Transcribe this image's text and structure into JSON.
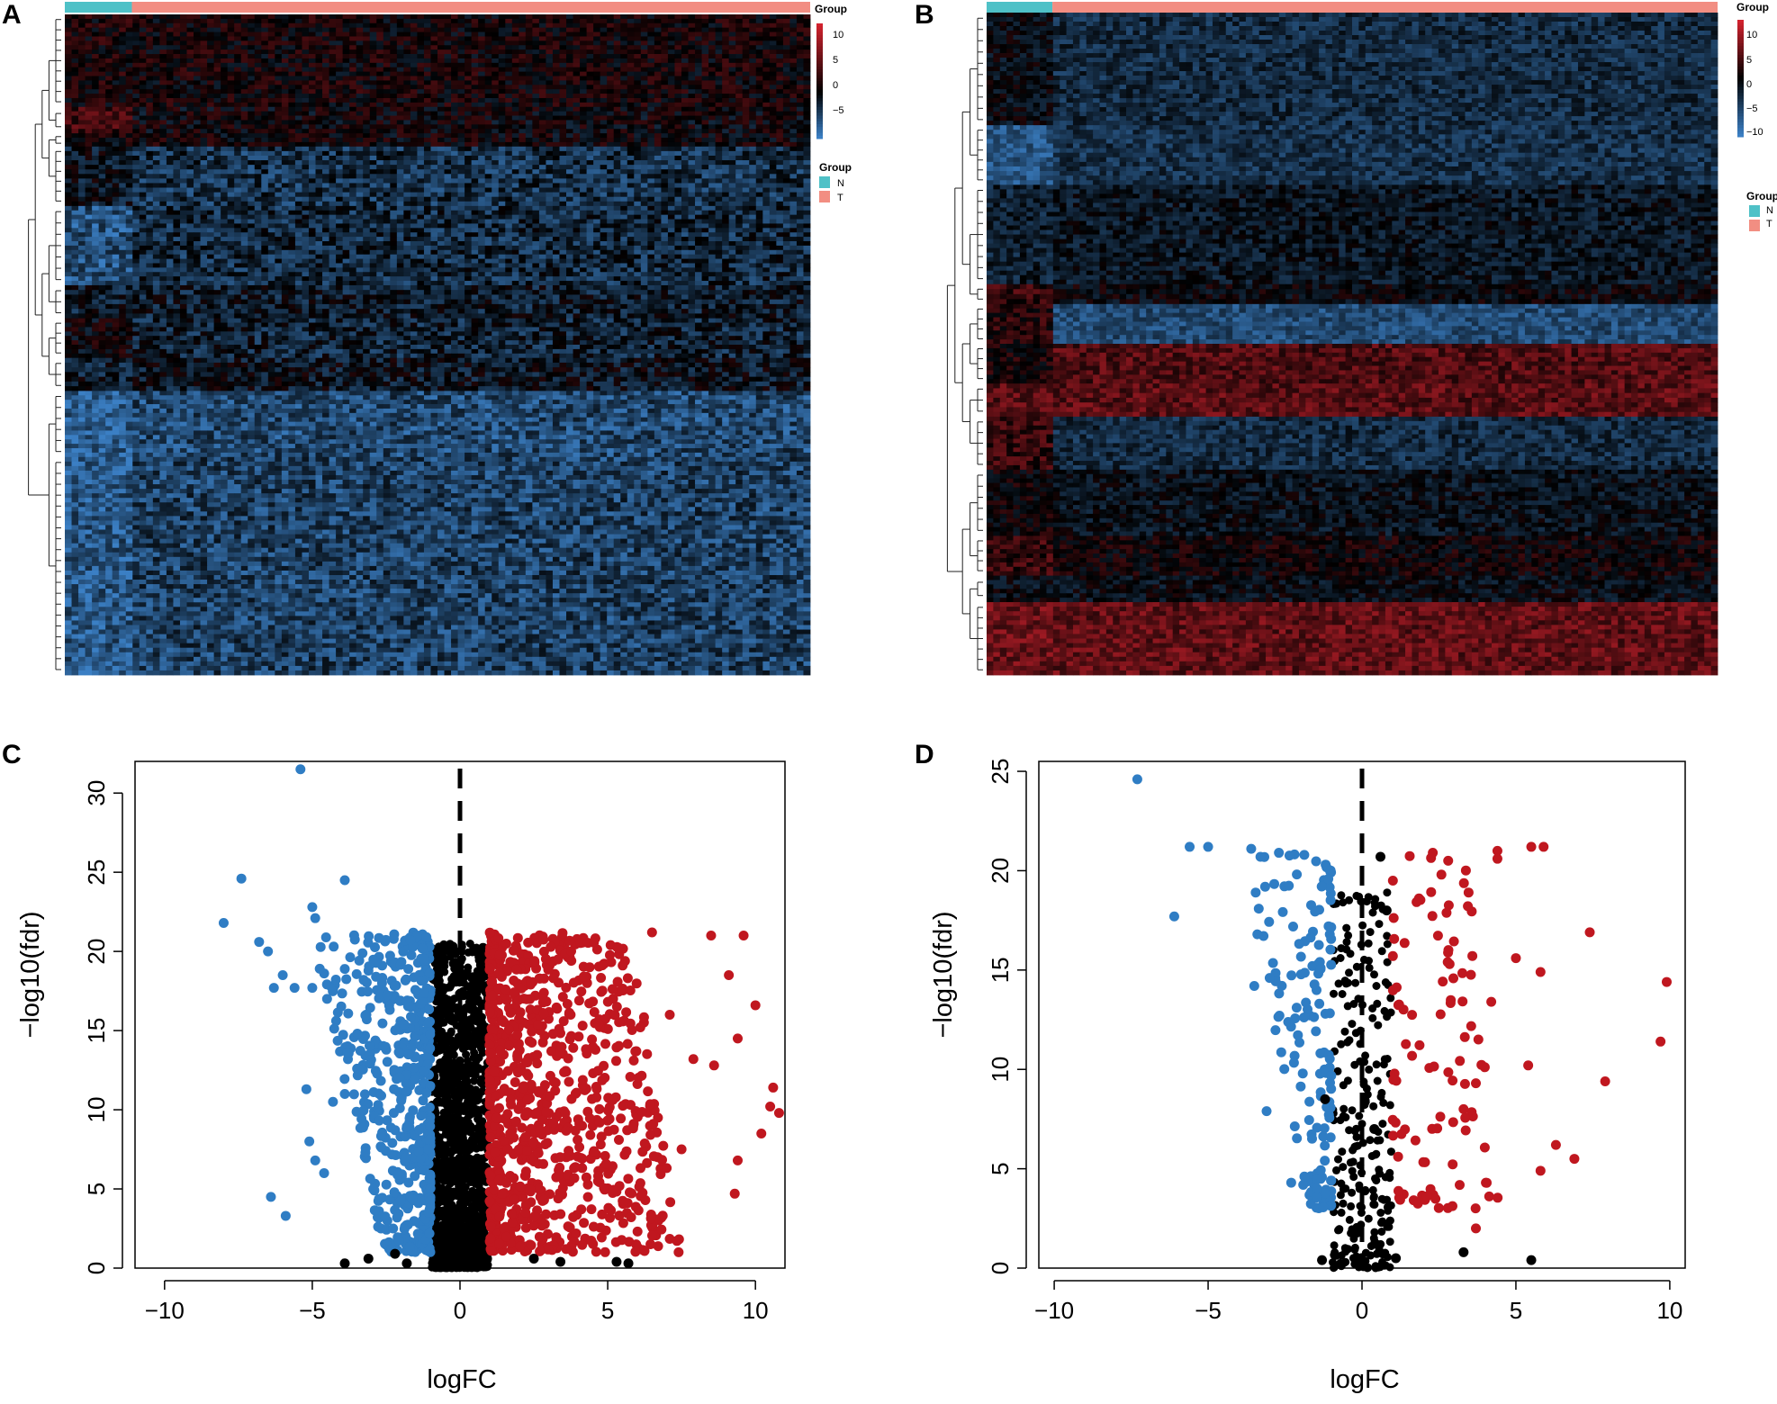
{
  "panels": {
    "A": "A",
    "B": "B",
    "C": "C",
    "D": "D"
  },
  "colors": {
    "high": "#d2222e",
    "mid": "#000000",
    "low": "#3b7fc4",
    "group_N": "#4fc1c7",
    "group_T": "#f28e82",
    "up_points": "#c0171f",
    "down_points": "#2f7dc4",
    "ns_points": "#000000"
  },
  "chart_data": [
    {
      "id": "A",
      "type": "heatmap",
      "annotation_title": "Group",
      "colorbar_ticks": [
        "10",
        "5",
        "0",
        "−5"
      ],
      "colorbar_range": [
        -8,
        12
      ],
      "legend_title": "Group",
      "legend_entries": [
        "N",
        "T"
      ],
      "groups": [
        {
          "name": "N",
          "fraction": 0.09
        },
        {
          "name": "T",
          "fraction": 0.91
        }
      ],
      "row_blocks": [
        {
          "fraction": 0.14,
          "N": 1.2,
          "T": 1.0
        },
        {
          "fraction": 0.04,
          "N": 3.5,
          "T": 0.4
        },
        {
          "fraction": 0.02,
          "N": 0.5,
          "T": 0.6
        },
        {
          "fraction": 0.09,
          "N": -1.0,
          "T": -3.0
        },
        {
          "fraction": 0.12,
          "N": -5.0,
          "T": -2.5
        },
        {
          "fraction": 0.05,
          "N": -1.5,
          "T": -1.5
        },
        {
          "fraction": 0.06,
          "N": 0.2,
          "T": -2.0
        },
        {
          "fraction": 0.05,
          "N": -1.5,
          "T": -1.0
        },
        {
          "fraction": 0.1,
          "N": -6.0,
          "T": -4.5
        },
        {
          "fraction": 0.33,
          "N": -5.5,
          "T": -4.0
        }
      ]
    },
    {
      "id": "B",
      "type": "heatmap",
      "annotation_title": "Group",
      "colorbar_ticks": [
        "10",
        "5",
        "0",
        "−5",
        "−10"
      ],
      "colorbar_range": [
        -12,
        12
      ],
      "legend_title": "Group",
      "legend_entries": [
        "N",
        "T"
      ],
      "groups": [
        {
          "name": "N",
          "fraction": 0.09
        },
        {
          "name": "T",
          "fraction": 0.91
        }
      ],
      "row_blocks": [
        {
          "fraction": 0.17,
          "N": -1.0,
          "T": -4.0
        },
        {
          "fraction": 0.09,
          "N": -8.0,
          "T": -4.5
        },
        {
          "fraction": 0.15,
          "N": -3.0,
          "T": -2.0
        },
        {
          "fraction": 0.03,
          "N": 3.0,
          "T": -0.5
        },
        {
          "fraction": 0.06,
          "N": 2.0,
          "T": -7.0
        },
        {
          "fraction": 0.06,
          "N": 1.0,
          "T": 4.5
        },
        {
          "fraction": 0.05,
          "N": 5.0,
          "T": 5.0
        },
        {
          "fraction": 0.08,
          "N": 3.0,
          "T": -4.0
        },
        {
          "fraction": 0.1,
          "N": 0.5,
          "T": -1.5
        },
        {
          "fraction": 0.06,
          "N": 3.0,
          "T": 0.5
        },
        {
          "fraction": 0.04,
          "N": -1.0,
          "T": -1.0
        },
        {
          "fraction": 0.11,
          "N": 6.0,
          "T": 5.5
        }
      ]
    },
    {
      "id": "C",
      "type": "scatter",
      "xlabel": "logFC",
      "ylabel": "−log10(fdr)",
      "xlim": [
        -11,
        11
      ],
      "ylim": [
        0,
        32
      ],
      "xticks": [
        -10,
        -5,
        0,
        5,
        10
      ],
      "yticks": [
        0,
        5,
        10,
        15,
        20,
        25,
        30
      ],
      "xtick_labels": [
        "−10",
        "−5",
        "0",
        "5",
        "10"
      ],
      "ytick_labels": [
        "0",
        "5",
        "10",
        "15",
        "20",
        "25",
        "30"
      ],
      "vline_x": 0,
      "cutoff_logFC": 1,
      "series": [
        {
          "name": "down",
          "color": "#2f7dc4",
          "points": [
            [
              -5.4,
              31.5
            ],
            [
              -7.4,
              24.6
            ],
            [
              -5.0,
              22.8
            ],
            [
              -4.9,
              22.1
            ],
            [
              -8.0,
              21.8
            ],
            [
              -3.9,
              24.5
            ],
            [
              -6.8,
              20.6
            ],
            [
              -6.5,
              20.0
            ],
            [
              -6.0,
              18.5
            ],
            [
              -6.3,
              17.7
            ],
            [
              -5.6,
              17.7
            ],
            [
              -5.0,
              17.7
            ],
            [
              -4.5,
              17.0
            ],
            [
              -6.4,
              4.5
            ],
            [
              -5.9,
              3.3
            ],
            [
              -5.2,
              11.3
            ],
            [
              -4.3,
              10.5
            ],
            [
              -3.9,
              11.0
            ],
            [
              -5.1,
              8.0
            ],
            [
              -4.6,
              6.0
            ],
            [
              -4.9,
              6.8
            ]
          ]
        },
        {
          "name": "up",
          "color": "#c0171f",
          "points": [
            [
              6.5,
              21.2
            ],
            [
              8.5,
              21.0
            ],
            [
              9.6,
              21.0
            ],
            [
              9.1,
              18.5
            ],
            [
              10.0,
              16.6
            ],
            [
              9.4,
              14.5
            ],
            [
              10.6,
              11.4
            ],
            [
              10.8,
              9.8
            ],
            [
              10.5,
              10.2
            ],
            [
              10.2,
              8.5
            ],
            [
              9.4,
              6.8
            ],
            [
              9.3,
              4.7
            ],
            [
              8.6,
              12.8
            ],
            [
              7.9,
              13.2
            ],
            [
              7.5,
              7.5
            ],
            [
              6.7,
              9.5
            ],
            [
              7.4,
              1.0
            ],
            [
              7.1,
              16.0
            ]
          ]
        },
        {
          "name": "ns",
          "color": "#000000",
          "points": [
            [
              -3.9,
              0.3
            ],
            [
              -3.1,
              0.6
            ],
            [
              -2.2,
              0.9
            ],
            [
              -1.8,
              0.3
            ],
            [
              2.5,
              0.6
            ],
            [
              3.4,
              0.4
            ],
            [
              5.3,
              0.4
            ],
            [
              5.7,
              0.3
            ]
          ]
        }
      ]
    },
    {
      "id": "D",
      "type": "scatter",
      "xlabel": "logFC",
      "ylabel": "−log10(fdr)",
      "xlim": [
        -10.5,
        10.5
      ],
      "ylim": [
        0,
        25.5
      ],
      "xticks": [
        -10,
        -5,
        0,
        5,
        10
      ],
      "yticks": [
        0,
        5,
        10,
        15,
        20,
        25
      ],
      "xtick_labels": [
        "−10",
        "−5",
        "0",
        "5",
        "10"
      ],
      "ytick_labels": [
        "0",
        "5",
        "10",
        "15",
        "20",
        "25"
      ],
      "vline_x": 0,
      "cutoff_logFC": 1,
      "series": [
        {
          "name": "down",
          "color": "#2f7dc4",
          "points": [
            [
              -7.3,
              24.6
            ],
            [
              -6.1,
              17.7
            ],
            [
              -5.6,
              21.2
            ],
            [
              -5.0,
              21.2
            ],
            [
              -3.6,
              21.1
            ],
            [
              -3.3,
              20.7
            ],
            [
              -2.7,
              20.9
            ],
            [
              -3.1,
              7.9
            ],
            [
              -2.3,
              4.3
            ],
            [
              -3.4,
              16.8
            ],
            [
              -3.0,
              14.6
            ],
            [
              -3.5,
              14.2
            ]
          ]
        },
        {
          "name": "up",
          "color": "#c0171f",
          "points": [
            [
              5.5,
              21.2
            ],
            [
              5.9,
              21.2
            ],
            [
              4.4,
              21.0
            ],
            [
              4.4,
              20.6
            ],
            [
              2.3,
              20.9
            ],
            [
              2.8,
              20.5
            ],
            [
              7.4,
              16.9
            ],
            [
              9.9,
              14.4
            ],
            [
              9.7,
              11.4
            ],
            [
              5.8,
              14.9
            ],
            [
              5.0,
              15.6
            ],
            [
              4.2,
              13.4
            ],
            [
              5.4,
              10.2
            ],
            [
              7.9,
              9.4
            ],
            [
              6.3,
              6.2
            ],
            [
              6.9,
              5.5
            ],
            [
              5.8,
              4.9
            ],
            [
              3.7,
              2.0
            ],
            [
              3.3,
              8.0
            ],
            [
              3.7,
              9.3
            ]
          ]
        },
        {
          "name": "ns",
          "color": "#000000",
          "points": [
            [
              5.5,
              0.4
            ],
            [
              3.3,
              0.8
            ],
            [
              -1.3,
              0.4
            ],
            [
              0.6,
              20.7
            ],
            [
              0.8,
              18.0
            ],
            [
              0.4,
              7.0
            ],
            [
              -1.2,
              8.5
            ],
            [
              1.1,
              0.5
            ]
          ]
        }
      ]
    }
  ]
}
